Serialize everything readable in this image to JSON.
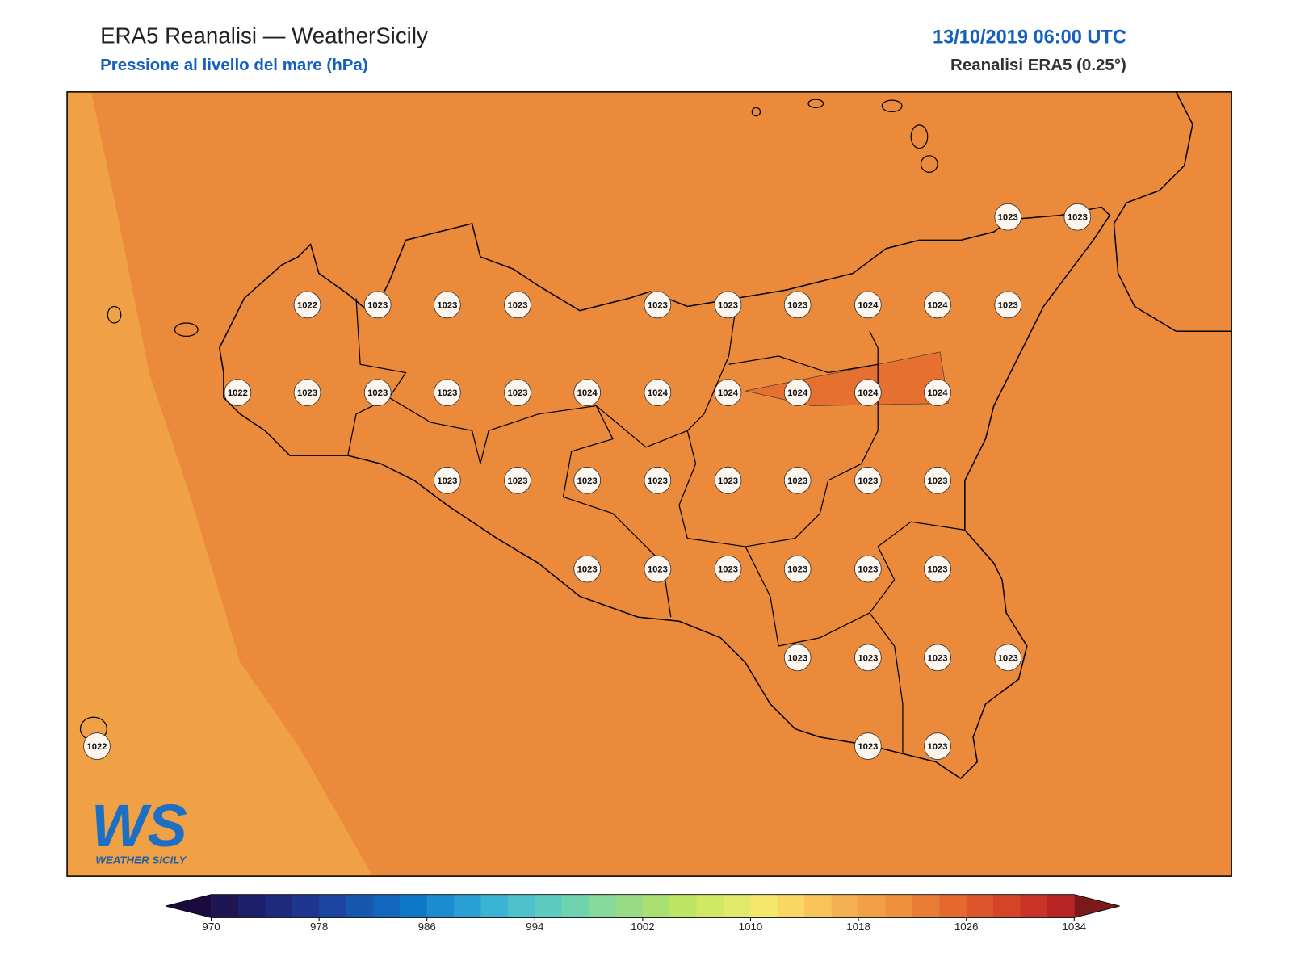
{
  "header": {
    "title": "ERA5 Reanalisi — WeatherSicily",
    "subtitle": "Pressione al livello del mare (hPa)",
    "datetime": "13/10/2019 06:00 UTC",
    "source": "Reanalisi ERA5 (0.25°)"
  },
  "pressure_labels": [
    1023,
    1023,
    1022,
    1023,
    1023,
    1023,
    1023,
    1023,
    1023,
    1024,
    1024,
    1023,
    1022,
    1023,
    1023,
    1023,
    1023,
    1024,
    1024,
    1024,
    1024,
    1024,
    1024,
    1023,
    1023,
    1023,
    1023,
    1023,
    1023,
    1023,
    1023,
    1023,
    1023,
    1023,
    1023,
    1023,
    1023,
    1023,
    1023,
    1023,
    1023,
    1022,
    1023,
    1023
  ],
  "logo": {
    "mark": "WS",
    "text": "WEATHER SICILY"
  },
  "colorbar": {
    "range": [
      970,
      1034
    ],
    "ticks": [
      970,
      978,
      986,
      994,
      1002,
      1010,
      1018,
      1026,
      1034
    ],
    "low_color": "#1a0a40",
    "high_color": "#7a1a1a",
    "colors": [
      "#1f1552",
      "#1c1f6a",
      "#1e2a7e",
      "#1f3690",
      "#1b45a0",
      "#1657b0",
      "#1266bd",
      "#0e78c8",
      "#1a8ccf",
      "#2a9fd3",
      "#3bb3d3",
      "#4dc2cc",
      "#5ccbc0",
      "#6fd3ae",
      "#85d99a",
      "#98dd86",
      "#aae072",
      "#bde563",
      "#d0e865",
      "#e1ea6a",
      "#f5e66c",
      "#fad664",
      "#f8c35a",
      "#f4b050",
      "#f2a045",
      "#ee903c",
      "#ea7d35",
      "#e5692f",
      "#df552b",
      "#d64428",
      "#c93226",
      "#b82424"
    ]
  }
}
